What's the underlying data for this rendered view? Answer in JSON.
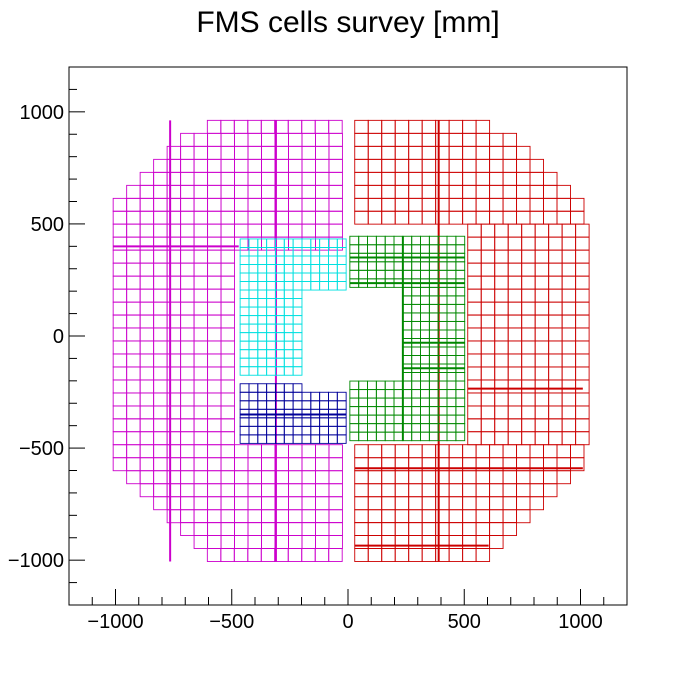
{
  "chart_data": {
    "type": "scatter",
    "title": "FMS cells survey [mm]",
    "xlabel": "",
    "ylabel": "",
    "xlim": [
      -1200,
      1200
    ],
    "ylim": [
      -1200,
      1200
    ],
    "xticks": [
      -1000,
      -500,
      0,
      500,
      1000
    ],
    "yticks": [
      1000,
      500,
      0,
      -500,
      -1000
    ],
    "xtick_labels": [
      "−1000",
      "−500",
      "0",
      "500",
      "1000"
    ],
    "ytick_labels": [
      "1000",
      "500",
      "0",
      "−500",
      "−1000"
    ],
    "grid": false,
    "legend": "none",
    "colors": {
      "large_west": "#cc00cc",
      "large_east": "#cc0000",
      "small_west_top": "#00e0e0",
      "small_west_bottom": "#000099",
      "small_east": "#008800"
    },
    "series": [
      {
        "key": "large_west",
        "cell": 58,
        "rows": [
          {
            "y": 933,
            "x0": -605,
            "x1": -29
          },
          {
            "y": 875,
            "x0": -720,
            "x1": -29
          },
          {
            "y": 817,
            "x0": -778,
            "x1": -29
          },
          {
            "y": 759,
            "x0": -836,
            "x1": -29
          },
          {
            "y": 701,
            "x0": -894,
            "x1": -29
          },
          {
            "y": 643,
            "x0": -952,
            "x1": -29
          },
          {
            "y": 585,
            "x0": -1010,
            "x1": -29
          },
          {
            "y": 528,
            "x0": -1010,
            "x1": -29
          },
          {
            "y": 470,
            "x0": -1010,
            "x1": -29
          },
          {
            "y": 412,
            "x0": -1010,
            "x1": -29
          },
          {
            "y": 354,
            "x0": -1010,
            "x1": -470
          },
          {
            "y": 296,
            "x0": -1010,
            "x1": -470
          },
          {
            "y": 238,
            "x0": -1010,
            "x1": -470
          },
          {
            "y": 180,
            "x0": -1010,
            "x1": -470
          },
          {
            "y": 122,
            "x0": -1010,
            "x1": -470
          },
          {
            "y": 65,
            "x0": -1010,
            "x1": -470
          },
          {
            "y": 7,
            "x0": -1010,
            "x1": -470
          },
          {
            "y": -51,
            "x0": -1010,
            "x1": -470
          },
          {
            "y": -109,
            "x0": -1010,
            "x1": -470
          },
          {
            "y": -167,
            "x0": -1010,
            "x1": -470
          },
          {
            "y": -225,
            "x0": -1010,
            "x1": -470
          },
          {
            "y": -283,
            "x0": -1010,
            "x1": -470
          },
          {
            "y": -341,
            "x0": -1010,
            "x1": -470
          },
          {
            "y": -398,
            "x0": -1010,
            "x1": -470
          },
          {
            "y": -456,
            "x0": -1010,
            "x1": -470
          },
          {
            "y": -514,
            "x0": -1010,
            "x1": -29
          },
          {
            "y": -572,
            "x0": -1010,
            "x1": -29
          },
          {
            "y": -630,
            "x0": -952,
            "x1": -29
          },
          {
            "y": -688,
            "x0": -894,
            "x1": -29
          },
          {
            "y": -746,
            "x0": -836,
            "x1": -29
          },
          {
            "y": -804,
            "x0": -778,
            "x1": -29
          },
          {
            "y": -861,
            "x0": -720,
            "x1": -29
          },
          {
            "y": -919,
            "x0": -662,
            "x1": -29
          },
          {
            "y": -977,
            "x0": -605,
            "x1": -29
          }
        ],
        "thick_v": [
          -765,
          -310
        ],
        "thick_h": [
          {
            "y": 400,
            "x0": -1010,
            "x1": -470
          }
        ]
      },
      {
        "key": "large_east",
        "cell": 58,
        "rows": [
          {
            "y": 933,
            "x0": 29,
            "x1": 605
          },
          {
            "y": 875,
            "x0": 29,
            "x1": 720
          },
          {
            "y": 817,
            "x0": 29,
            "x1": 778
          },
          {
            "y": 759,
            "x0": 29,
            "x1": 836
          },
          {
            "y": 701,
            "x0": 29,
            "x1": 894
          },
          {
            "y": 643,
            "x0": 29,
            "x1": 952
          },
          {
            "y": 585,
            "x0": 29,
            "x1": 1010
          },
          {
            "y": 528,
            "x0": 29,
            "x1": 1010
          },
          {
            "y": 470,
            "x0": 515,
            "x1": 1010
          },
          {
            "y": 412,
            "x0": 515,
            "x1": 1010
          },
          {
            "y": 354,
            "x0": 515,
            "x1": 1010
          },
          {
            "y": 296,
            "x0": 515,
            "x1": 1010
          },
          {
            "y": 238,
            "x0": 515,
            "x1": 1010
          },
          {
            "y": 180,
            "x0": 515,
            "x1": 1010
          },
          {
            "y": 122,
            "x0": 515,
            "x1": 1010
          },
          {
            "y": 65,
            "x0": 515,
            "x1": 1010
          },
          {
            "y": 7,
            "x0": 515,
            "x1": 1010
          },
          {
            "y": -51,
            "x0": 515,
            "x1": 1010
          },
          {
            "y": -109,
            "x0": 515,
            "x1": 1010
          },
          {
            "y": -167,
            "x0": 515,
            "x1": 1010
          },
          {
            "y": -225,
            "x0": 515,
            "x1": 1010
          },
          {
            "y": -283,
            "x0": 515,
            "x1": 1010
          },
          {
            "y": -341,
            "x0": 515,
            "x1": 1010
          },
          {
            "y": -398,
            "x0": 515,
            "x1": 1010
          },
          {
            "y": -456,
            "x0": 515,
            "x1": 1010
          },
          {
            "y": -514,
            "x0": 29,
            "x1": 1010
          },
          {
            "y": -572,
            "x0": 29,
            "x1": 1010
          },
          {
            "y": -630,
            "x0": 29,
            "x1": 952
          },
          {
            "y": -688,
            "x0": 29,
            "x1": 894
          },
          {
            "y": -746,
            "x0": 29,
            "x1": 836
          },
          {
            "y": -804,
            "x0": 29,
            "x1": 778
          },
          {
            "y": -861,
            "x0": 29,
            "x1": 720
          },
          {
            "y": -919,
            "x0": 29,
            "x1": 662
          },
          {
            "y": -977,
            "x0": 29,
            "x1": 605
          }
        ],
        "thick_v": [
          390
        ],
        "thick_h": [
          {
            "y": -590,
            "x0": 29,
            "x1": 1010
          },
          {
            "y": -935,
            "x0": 29,
            "x1": 605
          },
          {
            "y": -235,
            "x0": 515,
            "x1": 1010
          }
        ]
      },
      {
        "key": "small_west_top",
        "cell": 38,
        "rows": [
          {
            "y": 414,
            "x0": -464,
            "x1": -8
          },
          {
            "y": 376,
            "x0": -464,
            "x1": -8
          },
          {
            "y": 338,
            "x0": -464,
            "x1": -8
          },
          {
            "y": 300,
            "x0": -464,
            "x1": -8
          },
          {
            "y": 262,
            "x0": -464,
            "x1": -8
          },
          {
            "y": 224,
            "x0": -464,
            "x1": -8
          },
          {
            "y": 186,
            "x0": -464,
            "x1": -198
          },
          {
            "y": 148,
            "x0": -464,
            "x1": -198
          },
          {
            "y": 110,
            "x0": -464,
            "x1": -198
          },
          {
            "y": 72,
            "x0": -464,
            "x1": -198
          },
          {
            "y": 34,
            "x0": -464,
            "x1": -198
          },
          {
            "y": -4,
            "x0": -464,
            "x1": -198
          },
          {
            "y": -42,
            "x0": -464,
            "x1": -198
          },
          {
            "y": -80,
            "x0": -464,
            "x1": -198
          },
          {
            "y": -118,
            "x0": -464,
            "x1": -198
          },
          {
            "y": -156,
            "x0": -464,
            "x1": -198
          }
        ],
        "thick_v": [],
        "thick_h": []
      },
      {
        "key": "small_west_bottom",
        "cell": 38,
        "rows": [
          {
            "y": -232,
            "x0": -464,
            "x1": -198
          },
          {
            "y": -270,
            "x0": -464,
            "x1": -8
          },
          {
            "y": -308,
            "x0": -464,
            "x1": -8
          },
          {
            "y": -346,
            "x0": -464,
            "x1": -8
          },
          {
            "y": -384,
            "x0": -464,
            "x1": -8
          },
          {
            "y": -422,
            "x0": -464,
            "x1": -8
          },
          {
            "y": -460,
            "x0": -464,
            "x1": -8
          }
        ],
        "thick_v": [],
        "thick_h": [
          {
            "y": -350,
            "x0": -464,
            "x1": -8
          }
        ]
      },
      {
        "key": "small_east",
        "cell": 38,
        "rows": [
          {
            "y": 426,
            "x0": 8,
            "x1": 502
          },
          {
            "y": 388,
            "x0": 8,
            "x1": 502
          },
          {
            "y": 350,
            "x0": 8,
            "x1": 502
          },
          {
            "y": 312,
            "x0": 8,
            "x1": 502
          },
          {
            "y": 274,
            "x0": 8,
            "x1": 502
          },
          {
            "y": 236,
            "x0": 8,
            "x1": 502
          },
          {
            "y": 198,
            "x0": 236,
            "x1": 502
          },
          {
            "y": 160,
            "x0": 236,
            "x1": 502
          },
          {
            "y": 122,
            "x0": 236,
            "x1": 502
          },
          {
            "y": 84,
            "x0": 236,
            "x1": 502
          },
          {
            "y": 46,
            "x0": 236,
            "x1": 502
          },
          {
            "y": 8,
            "x0": 236,
            "x1": 502
          },
          {
            "y": -30,
            "x0": 236,
            "x1": 502
          },
          {
            "y": -68,
            "x0": 236,
            "x1": 502
          },
          {
            "y": -106,
            "x0": 236,
            "x1": 502
          },
          {
            "y": -144,
            "x0": 236,
            "x1": 502
          },
          {
            "y": -182,
            "x0": 236,
            "x1": 502
          },
          {
            "y": -220,
            "x0": 8,
            "x1": 502
          },
          {
            "y": -258,
            "x0": 8,
            "x1": 502
          },
          {
            "y": -296,
            "x0": 8,
            "x1": 502
          },
          {
            "y": -334,
            "x0": 8,
            "x1": 502
          },
          {
            "y": -372,
            "x0": 8,
            "x1": 502
          },
          {
            "y": -410,
            "x0": 8,
            "x1": 502
          },
          {
            "y": -448,
            "x0": 8,
            "x1": 502
          }
        ],
        "thick_v": [
          236
        ],
        "thick_h": [
          {
            "y": 350,
            "x0": 8,
            "x1": 502
          },
          {
            "y": 236,
            "x0": 8,
            "x1": 502
          },
          {
            "y": -30,
            "x0": 236,
            "x1": 502
          },
          {
            "y": -144,
            "x0": 236,
            "x1": 502
          }
        ]
      }
    ]
  }
}
